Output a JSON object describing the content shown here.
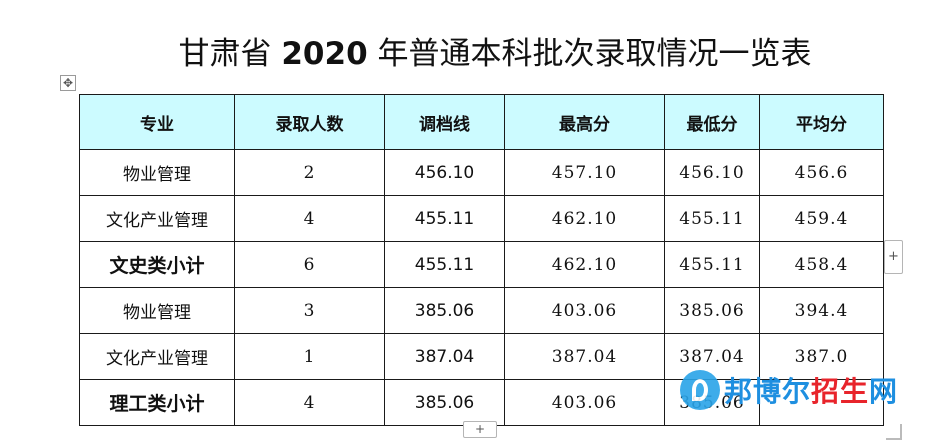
{
  "title": {
    "prefix": "甘肃省 ",
    "year": "2020",
    "suffix": " 年普通本科批次录取情况一览表"
  },
  "table": {
    "headers": [
      "专业",
      "录取人数",
      "调档线",
      "最高分",
      "最低分",
      "平均分"
    ],
    "rows": [
      {
        "major": "物业管理",
        "count": "2",
        "cutoff": "456.10",
        "max": "457.10",
        "min": "456.10",
        "avg": "456.6",
        "subtotal": false
      },
      {
        "major": "文化产业管理",
        "count": "4",
        "cutoff": "455.11",
        "max": "462.10",
        "min": "455.11",
        "avg": "459.4",
        "subtotal": false
      },
      {
        "major": "文史类小计",
        "count": "6",
        "cutoff": "455.11",
        "max": "462.10",
        "min": "455.11",
        "avg": "458.4",
        "subtotal": true
      },
      {
        "major": "物业管理",
        "count": "3",
        "cutoff": "385.06",
        "max": "403.06",
        "min": "385.06",
        "avg": "394.4",
        "subtotal": false
      },
      {
        "major": "文化产业管理",
        "count": "1",
        "cutoff": "387.04",
        "max": "387.04",
        "min": "387.04",
        "avg": "387.0",
        "subtotal": false
      },
      {
        "major": "理工类小计",
        "count": "4",
        "cutoff": "385.06",
        "max": "403.06",
        "min": "385.06",
        "avg": "",
        "subtotal": true
      }
    ]
  },
  "controls": {
    "move_icon": "✥",
    "add_column": "+",
    "add_row": "+"
  },
  "watermark": {
    "icon": "bang-logo-icon",
    "text_blue": "邦博尔",
    "text_red": "招生",
    "text_blue2": "网"
  }
}
